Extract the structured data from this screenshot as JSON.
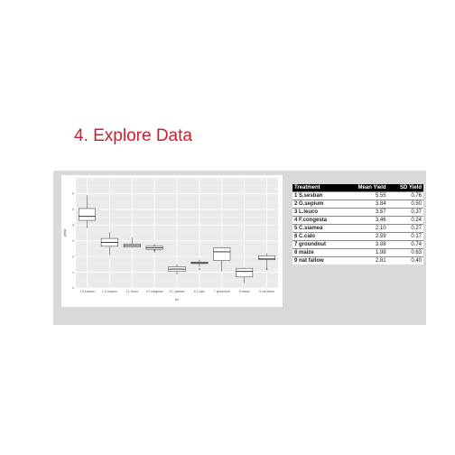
{
  "slide": {
    "title": "4. Explore Data"
  },
  "chart_data": {
    "type": "box",
    "categories": [
      "1 S.sesban",
      "2 G.sepium",
      "3 L.leuco",
      "4 F.congesta",
      "5 C.siamea",
      "6 C.calo",
      "7 groundnut",
      "8 maize",
      "9 nat fallow"
    ],
    "xlabel": "trt",
    "ylabel": "yield",
    "ylim": [
      0,
      7
    ],
    "yticks": [
      0,
      1,
      2,
      3,
      4,
      5,
      6
    ],
    "grid": true,
    "boxes": [
      {
        "min": 3.8,
        "q1": 4.3,
        "median": 4.55,
        "q3": 5.05,
        "max": 5.9
      },
      {
        "min": 2.1,
        "q1": 2.65,
        "median": 2.9,
        "q3": 3.15,
        "max": 3.55
      },
      {
        "min": 2.55,
        "q1": 2.6,
        "median": 2.7,
        "q3": 2.8,
        "max": 3.2
      },
      {
        "min": 2.25,
        "q1": 2.45,
        "median": 2.55,
        "q3": 2.65,
        "max": 2.8
      },
      {
        "min": 0.85,
        "q1": 1.05,
        "median": 1.2,
        "q3": 1.35,
        "max": 1.5
      },
      {
        "min": 1.35,
        "q1": 1.55,
        "median": 1.6,
        "q3": 1.65,
        "max": 1.8
      },
      {
        "min": 1.05,
        "q1": 1.75,
        "median": 2.3,
        "q3": 2.55,
        "max": 2.6
      },
      {
        "min": 0.3,
        "q1": 0.7,
        "median": 1.05,
        "q3": 1.25,
        "max": 1.3
      },
      {
        "min": 1.15,
        "q1": 1.8,
        "median": 1.85,
        "q3": 2.05,
        "max": 2.2
      }
    ],
    "outliers": [
      {
        "series": 3,
        "value": 2.4
      },
      {
        "series": 5,
        "value": 1.2
      },
      {
        "series": 8,
        "value": 1.2
      }
    ]
  },
  "table": {
    "headers": [
      "Treatment",
      "Mean Yield",
      "SD Yield"
    ],
    "rows": [
      [
        "1 S.sesban",
        "5.55",
        "0.76"
      ],
      [
        "2 G.sepium",
        "3.84",
        "0.50"
      ],
      [
        "3 L.leuco",
        "3.57",
        "0.37"
      ],
      [
        "4 F.congesta",
        "3.46",
        "0.24"
      ],
      [
        "5 C.siamea",
        "2.10",
        "0.27"
      ],
      [
        "6 C.calo",
        "2.59",
        "0.17"
      ],
      [
        "7 groundnut",
        "3.08",
        "0.74"
      ],
      [
        "8 maize",
        "1.98",
        "0.63"
      ],
      [
        "9 nat fallow",
        "2.81",
        "0.40"
      ]
    ]
  }
}
